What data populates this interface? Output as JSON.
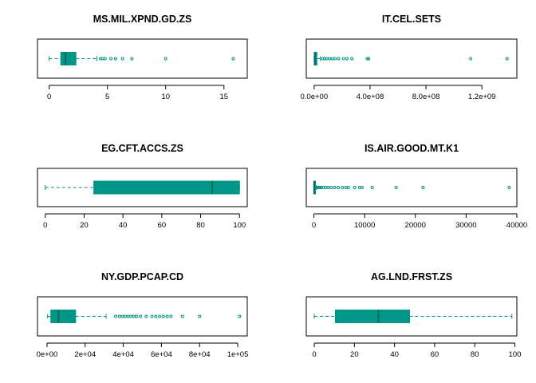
{
  "chart_data": [
    {
      "type": "boxplot",
      "title": "MS.MIL.XPND.GD.ZS",
      "color": "#009688",
      "xlim": [
        -1,
        17
      ],
      "ticks": [
        0,
        5,
        10,
        15
      ],
      "tick_labels": [
        "0",
        "5",
        "10",
        "15"
      ],
      "stats": {
        "min": 0.0,
        "q1": 1.0,
        "median": 1.4,
        "q3": 2.3,
        "whisker_high": 4.1
      },
      "outliers": [
        4.4,
        4.6,
        4.8,
        5.3,
        5.7,
        6.3,
        7.1,
        10.0,
        15.8
      ]
    },
    {
      "type": "boxplot",
      "title": "IT.CEL.SETS",
      "color": "#009688",
      "xlim": [
        -56000000,
        1450000000
      ],
      "ticks": [
        0,
        400000000,
        800000000,
        1200000000
      ],
      "tick_labels": [
        "0.0e+00",
        "4.0e+08",
        "8.0e+08",
        "1.2e+09"
      ],
      "stats": {
        "min": 0,
        "q1": 1000000,
        "median": 5000000,
        "q3": 20000000,
        "whisker_high": 45000000
      },
      "outliers": [
        60000000,
        75000000,
        90000000,
        110000000,
        130000000,
        150000000,
        175000000,
        210000000,
        235000000,
        270000000,
        380000000,
        390000000,
        1120000000,
        1380000000
      ]
    },
    {
      "type": "boxplot",
      "title": "EG.CFT.ACCS.ZS",
      "color": "#009688",
      "xlim": [
        -4,
        104
      ],
      "ticks": [
        0,
        20,
        40,
        60,
        80,
        100
      ],
      "tick_labels": [
        "0",
        "20",
        "40",
        "60",
        "80",
        "100"
      ],
      "stats": {
        "min": 0.0,
        "q1": 25.0,
        "median": 86.0,
        "q3": 100.0,
        "whisker_high": 100.0
      },
      "outliers": []
    },
    {
      "type": "boxplot",
      "title": "IS.AIR.GOOD.MT.K1",
      "color": "#009688",
      "xlim": [
        -1500,
        40000
      ],
      "ticks": [
        0,
        10000,
        20000,
        30000,
        40000
      ],
      "tick_labels": [
        "0",
        "10000",
        "20000",
        "30000",
        "40000"
      ],
      "stats": {
        "min": 0,
        "q1": 0,
        "median": 50,
        "q3": 200,
        "whisker_high": 450
      },
      "outliers": [
        600,
        800,
        1000,
        1200,
        1500,
        1900,
        2300,
        2800,
        3400,
        4100,
        4800,
        5600,
        6300,
        6800,
        8000,
        9000,
        9500,
        11500,
        16200,
        21500,
        38500
      ]
    },
    {
      "type": "boxplot",
      "title": "NY.GDP.PCAP.CD",
      "color": "#009688",
      "xlim": [
        -5000,
        105000
      ],
      "ticks": [
        0,
        20000,
        40000,
        60000,
        80000,
        100000
      ],
      "tick_labels": [
        "0e+00",
        "2e+04",
        "4e+04",
        "6e+04",
        "8e+04",
        "1e+05"
      ],
      "stats": {
        "min": 300,
        "q1": 2000,
        "median": 6000,
        "q3": 15000,
        "whisker_high": 31000
      },
      "outliers": [
        36000,
        38000,
        39500,
        41000,
        42500,
        44000,
        45500,
        47000,
        49000,
        52000,
        55000,
        57000,
        59000,
        61000,
        63000,
        65000,
        71000,
        80000,
        101000
      ]
    },
    {
      "type": "boxplot",
      "title": "AG.LND.FRST.ZS",
      "color": "#009688",
      "xlim": [
        -4,
        101
      ],
      "ticks": [
        0,
        20,
        40,
        60,
        80,
        100
      ],
      "tick_labels": [
        "0",
        "20",
        "40",
        "60",
        "80",
        "100"
      ],
      "stats": {
        "min": 0.0,
        "q1": 10.5,
        "median": 32.0,
        "q3": 47.5,
        "whisker_high": 98.5
      },
      "outliers": []
    }
  ]
}
